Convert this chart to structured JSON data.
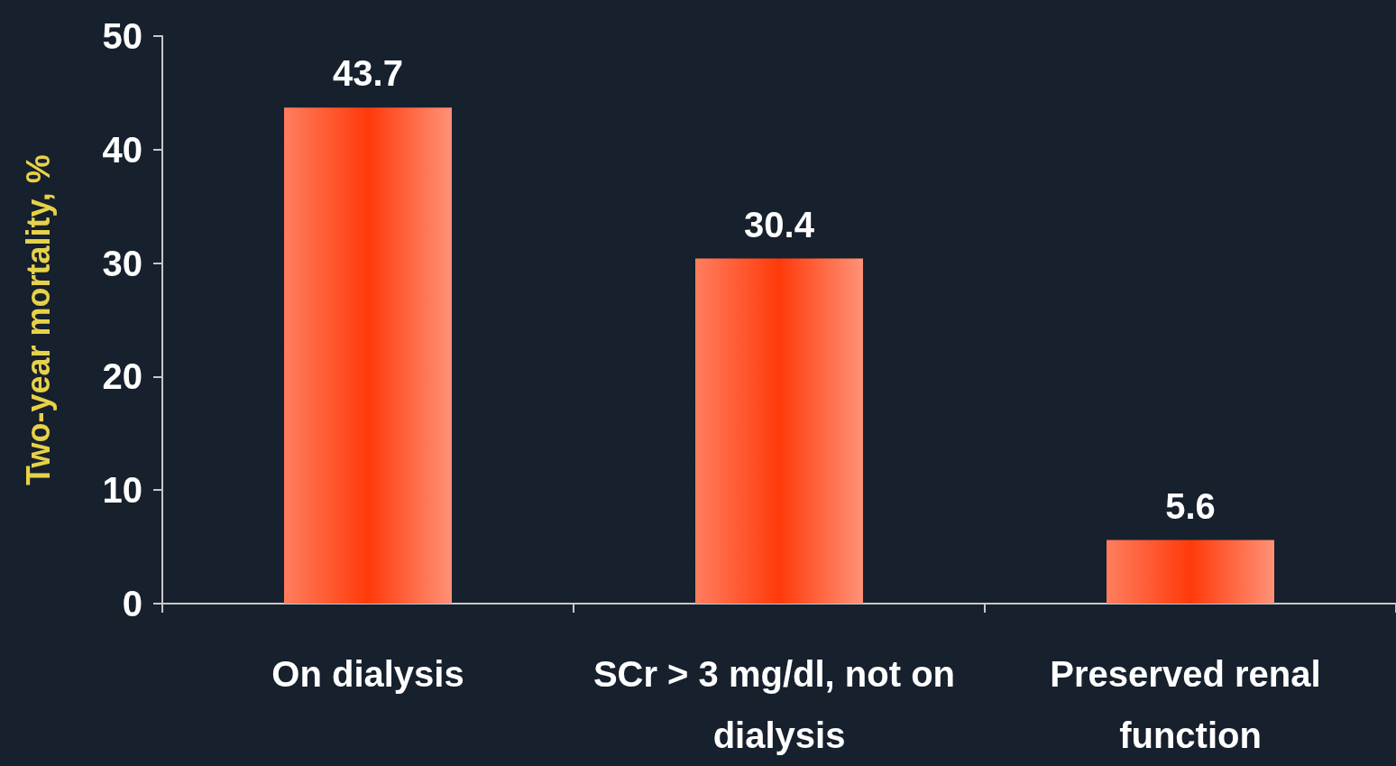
{
  "chart_data": {
    "type": "bar",
    "ylabel": "Two-year mortality, %",
    "categories": [
      "On dialysis",
      "SCr > 3 mg/dl, not on dialysis",
      "Preserved renal function"
    ],
    "values": [
      43.7,
      30.4,
      5.6
    ],
    "color": "#ff3a0a",
    "ylim": [
      0,
      50
    ],
    "yticks": [
      0,
      10,
      20,
      30,
      40,
      50
    ],
    "grid": false,
    "data_labels": true
  }
}
